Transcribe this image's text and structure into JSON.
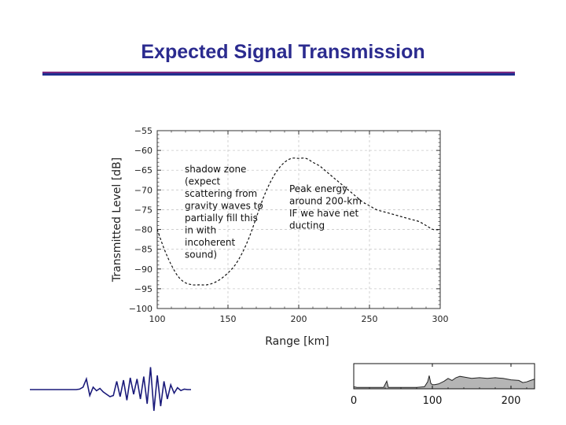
{
  "slide": {
    "title": "Expected Signal Transmission"
  },
  "chart_data": [
    {
      "type": "line",
      "title": "",
      "xlabel": "Range [km]",
      "ylabel": "Transmitted Level [dB]",
      "xlim": [
        100,
        300
      ],
      "ylim": [
        -100,
        -55
      ],
      "xticks": [
        100,
        150,
        200,
        250,
        300
      ],
      "yticks": [
        -55,
        -60,
        -65,
        -70,
        -75,
        -80,
        -85,
        -90,
        -95,
        -100
      ],
      "grid": true,
      "line_style": "dashed",
      "line_color": "#111111",
      "series": [
        {
          "x": [
            100,
            105,
            110,
            115,
            120,
            125,
            130,
            135,
            140,
            145,
            150,
            155,
            160,
            165,
            170,
            175,
            180,
            185,
            190,
            195,
            200,
            205,
            210,
            215,
            220,
            225,
            230,
            235,
            240,
            245,
            250,
            255,
            260,
            265,
            270,
            275,
            280,
            285,
            290,
            295,
            300
          ],
          "y": [
            -80,
            -85,
            -89,
            -92,
            -93.5,
            -94,
            -94,
            -94,
            -93.5,
            -92.5,
            -91,
            -89,
            -86,
            -82,
            -77,
            -72,
            -68,
            -65,
            -63,
            -62,
            -62,
            -62,
            -63,
            -64,
            -65.5,
            -67,
            -68.5,
            -70,
            -71.5,
            -73,
            -74,
            -75,
            -75.5,
            -76,
            -76.5,
            -77,
            -77.5,
            -78,
            -79,
            -80,
            -80
          ]
        }
      ],
      "annotations": [
        {
          "text": "shadow zone\n(expect\nscattering from\ngravity waves to\npartially fill this\nin with\nincoherent\nsound)"
        },
        {
          "text": "Peak energy\naround 200-km\nIF we have net\nducting"
        }
      ]
    },
    {
      "type": "area",
      "title": "",
      "xlabel": "",
      "ylabel": "",
      "xlim": [
        0,
        230
      ],
      "xticks": [
        0,
        100,
        200
      ],
      "fill_color": "#b5b5b5",
      "series": [
        {
          "x": [
            0,
            4,
            10,
            20,
            30,
            38,
            42,
            44,
            46,
            50,
            60,
            70,
            80,
            90,
            94,
            96,
            98,
            100,
            103,
            108,
            115,
            120,
            125,
            130,
            135,
            140,
            150,
            160,
            170,
            180,
            190,
            200,
            210,
            215,
            220,
            225,
            230
          ],
          "y": [
            0.15,
            0.1,
            0.1,
            0.1,
            0.1,
            0.1,
            0.55,
            0.1,
            0.1,
            0.1,
            0.1,
            0.1,
            0.1,
            0.15,
            0.5,
            0.95,
            0.4,
            0.3,
            0.3,
            0.35,
            0.55,
            0.75,
            0.6,
            0.8,
            0.9,
            0.85,
            0.75,
            0.8,
            0.75,
            0.8,
            0.75,
            0.65,
            0.6,
            0.45,
            0.5,
            0.6,
            0.7
          ]
        }
      ]
    }
  ],
  "waveform": {
    "color": "#1a1a7a",
    "samples": [
      0,
      0,
      0,
      0,
      0,
      0,
      0,
      0,
      0,
      0,
      0,
      0.02,
      0.1,
      0.45,
      -0.25,
      0.1,
      -0.05,
      0.05,
      -0.1,
      -0.2,
      -0.3,
      -0.25,
      0.35,
      -0.3,
      0.4,
      -0.45,
      0.5,
      -0.2,
      0.45,
      -0.4,
      0.55,
      -0.6,
      0.95,
      -0.9,
      0.6,
      -0.7,
      0.35,
      -0.4,
      0.2,
      -0.15,
      0.08,
      -0.04,
      0.02,
      0,
      0
    ]
  }
}
